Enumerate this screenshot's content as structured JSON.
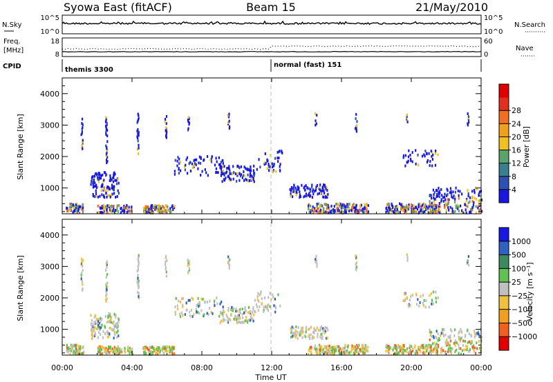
{
  "header": {
    "station": "Syowa East (fitACF)",
    "beam": "Beam 15",
    "date": "21/May/2010"
  },
  "noise_panel": {
    "left_label": "N.Sky",
    "right_label": "N.Search",
    "left_ticks": [
      "10^5",
      "10^0"
    ],
    "right_ticks": [
      "10^5",
      "10^0"
    ]
  },
  "freq_panel": {
    "left_label_1": "Freq.",
    "left_label_2": "[MHz]",
    "right_label": "Nave",
    "left_ticks": [
      "18",
      "8"
    ],
    "right_ticks": [
      "60",
      "0"
    ]
  },
  "cpid": {
    "label": "CPID",
    "modes": [
      {
        "name": "themis 3300",
        "start_hour": 0
      },
      {
        "name": "normal (fast) 151",
        "start_hour": 12
      }
    ]
  },
  "axes": {
    "ylabel": "Slant Range [km]",
    "xlabel": "Time UT",
    "x_ticks": [
      "00:00",
      "04:00",
      "08:00",
      "12:00",
      "16:00",
      "20:00",
      "00:00"
    ],
    "y_ticks": [
      "1000",
      "2000",
      "3000",
      "4000"
    ]
  },
  "chart_data": [
    {
      "type": "heatmap",
      "name": "power",
      "ylabel": "Slant Range [km]",
      "xlabel": "Time UT",
      "xlim": [
        0,
        24
      ],
      "ylim": [
        180,
        4500
      ],
      "colorbar_label": "Power [dB]",
      "colorbar_ticks": [
        "4",
        "8",
        "12",
        "16",
        "20",
        "24",
        "28"
      ],
      "colorbar_colors": [
        "#1818e0",
        "#2e50b0",
        "#3a7f8f",
        "#5aa36a",
        "#f0c020",
        "#f0a020",
        "#f07020",
        "#e03020",
        "#e00000"
      ],
      "clusters": [
        {
          "t0": 0.2,
          "t1": 1.2,
          "r0": 200,
          "r1": 500,
          "n": 60
        },
        {
          "t0": 1.6,
          "t1": 3.2,
          "r0": 700,
          "r1": 1500,
          "n": 120
        },
        {
          "t0": 2.0,
          "t1": 4.0,
          "r0": 180,
          "r1": 450,
          "n": 90
        },
        {
          "t0": 4.6,
          "t1": 6.4,
          "r0": 180,
          "r1": 450,
          "n": 110
        },
        {
          "t0": 6.4,
          "t1": 9.2,
          "r0": 1400,
          "r1": 2000,
          "n": 70
        },
        {
          "t0": 9.0,
          "t1": 11.0,
          "r0": 1200,
          "r1": 1700,
          "n": 90
        },
        {
          "t0": 11.0,
          "t1": 12.6,
          "r0": 1500,
          "r1": 2200,
          "n": 40
        },
        {
          "t0": 13.0,
          "t1": 15.2,
          "r0": 700,
          "r1": 1100,
          "n": 90
        },
        {
          "t0": 14.0,
          "t1": 17.5,
          "r0": 180,
          "r1": 500,
          "n": 180
        },
        {
          "t0": 18.5,
          "t1": 21.5,
          "r0": 180,
          "r1": 500,
          "n": 160
        },
        {
          "t0": 19.5,
          "t1": 21.5,
          "r0": 1700,
          "r1": 2200,
          "n": 40
        },
        {
          "t0": 21.0,
          "t1": 24.0,
          "r0": 200,
          "r1": 1000,
          "n": 160
        }
      ],
      "columns": [
        {
          "t": 1.1,
          "r0": 2200,
          "r1": 3300
        },
        {
          "t": 2.5,
          "r0": 1800,
          "r1": 3300
        },
        {
          "t": 4.3,
          "r0": 2000,
          "r1": 3400
        },
        {
          "t": 5.9,
          "r0": 2600,
          "r1": 3400
        },
        {
          "t": 7.2,
          "r0": 2800,
          "r1": 3300
        },
        {
          "t": 9.5,
          "r0": 2900,
          "r1": 3400
        },
        {
          "t": 14.5,
          "r0": 3000,
          "r1": 3400
        },
        {
          "t": 16.8,
          "r0": 2800,
          "r1": 3400
        },
        {
          "t": 19.7,
          "r0": 3100,
          "r1": 3400
        },
        {
          "t": 23.2,
          "r0": 3000,
          "r1": 3400
        }
      ]
    },
    {
      "type": "heatmap",
      "name": "velocity",
      "ylabel": "Slant Range [km]",
      "xlabel": "Time UT",
      "xlim": [
        0,
        24
      ],
      "ylim": [
        180,
        4500
      ],
      "colorbar_label": "Velocity [m s⁻¹]",
      "colorbar_ticks": [
        "1000",
        "500",
        "100",
        "25",
        "−25",
        "−100",
        "−500",
        "−1000"
      ],
      "colorbar_colors": [
        "#1818e0",
        "#3060c0",
        "#3d8a60",
        "#60c050",
        "#c0c0c0",
        "#f0c040",
        "#f0a020",
        "#f06020",
        "#e00000"
      ],
      "clusters": [
        {
          "t0": 0.2,
          "t1": 1.2,
          "r0": 200,
          "r1": 500,
          "n": 60
        },
        {
          "t0": 1.6,
          "t1": 3.2,
          "r0": 700,
          "r1": 1500,
          "n": 120
        },
        {
          "t0": 2.0,
          "t1": 4.0,
          "r0": 180,
          "r1": 450,
          "n": 90
        },
        {
          "t0": 4.6,
          "t1": 6.4,
          "r0": 180,
          "r1": 450,
          "n": 110
        },
        {
          "t0": 6.4,
          "t1": 9.2,
          "r0": 1400,
          "r1": 2000,
          "n": 70
        },
        {
          "t0": 9.0,
          "t1": 11.0,
          "r0": 1200,
          "r1": 1700,
          "n": 90
        },
        {
          "t0": 11.0,
          "t1": 12.6,
          "r0": 1500,
          "r1": 2200,
          "n": 40
        },
        {
          "t0": 13.0,
          "t1": 15.2,
          "r0": 700,
          "r1": 1100,
          "n": 90
        },
        {
          "t0": 14.0,
          "t1": 17.5,
          "r0": 180,
          "r1": 500,
          "n": 180
        },
        {
          "t0": 18.5,
          "t1": 21.5,
          "r0": 180,
          "r1": 500,
          "n": 160
        },
        {
          "t0": 19.5,
          "t1": 21.5,
          "r0": 1700,
          "r1": 2200,
          "n": 40
        },
        {
          "t0": 21.0,
          "t1": 24.0,
          "r0": 200,
          "r1": 1000,
          "n": 160
        }
      ],
      "columns": [
        {
          "t": 1.1,
          "r0": 2200,
          "r1": 3300
        },
        {
          "t": 2.5,
          "r0": 1800,
          "r1": 3300
        },
        {
          "t": 4.3,
          "r0": 2000,
          "r1": 3400
        },
        {
          "t": 5.9,
          "r0": 2600,
          "r1": 3400
        },
        {
          "t": 7.2,
          "r0": 2800,
          "r1": 3300
        },
        {
          "t": 9.5,
          "r0": 2900,
          "r1": 3400
        },
        {
          "t": 14.5,
          "r0": 3000,
          "r1": 3400
        },
        {
          "t": 16.8,
          "r0": 2800,
          "r1": 3400
        },
        {
          "t": 19.7,
          "r0": 3100,
          "r1": 3400
        },
        {
          "t": 23.2,
          "r0": 3000,
          "r1": 3400
        }
      ]
    }
  ]
}
